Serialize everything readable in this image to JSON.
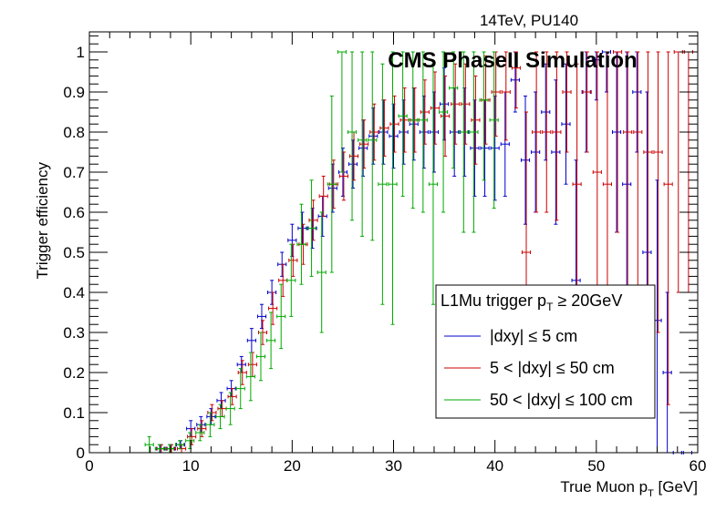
{
  "chart_data": {
    "type": "scatter",
    "title": "14TeV, PU140",
    "annotation": "CMS PhaseII Simulation",
    "xlabel": "True Muon p",
    "xlabel_sub": "T",
    "xlabel_unit": " [GeV]",
    "ylabel": "Trigger efficiency",
    "xlim": [
      0,
      60
    ],
    "ylim": [
      0,
      1.05
    ],
    "x_ticks": [
      0,
      10,
      20,
      30,
      40,
      50,
      60
    ],
    "y_ticks": [
      0,
      0.1,
      0.2,
      0.3,
      0.4,
      0.5,
      0.6,
      0.7,
      0.8,
      0.9,
      1
    ],
    "x_tick_labels": [
      "0",
      "10",
      "20",
      "30",
      "40",
      "50",
      "60"
    ],
    "y_tick_labels": [
      "0",
      "0.1",
      "0.2",
      "0.3",
      "0.4",
      "0.5",
      "0.6",
      "0.7",
      "0.8",
      "0.9",
      "1"
    ],
    "grid": false,
    "legend": {
      "placement": "bottom-right",
      "header_prefix": "L1Mu trigger p",
      "header_sub": "T",
      "header_suffix": " ≥ 20GeV"
    },
    "series": [
      {
        "name": "|dxy| ≤ 5 cm",
        "color": "#0000cc",
        "x": [
          7,
          8,
          9,
          10,
          11,
          12,
          13,
          14,
          15,
          16,
          17,
          18,
          19,
          20,
          21,
          22,
          23,
          24,
          25,
          26,
          27,
          28,
          29,
          30,
          31,
          32,
          33,
          34,
          35,
          36,
          37,
          38,
          39,
          40,
          41,
          42,
          43,
          44,
          45,
          46,
          47,
          48,
          49,
          50,
          51,
          52,
          53,
          54,
          55,
          56,
          57,
          58,
          59
        ],
        "y": [
          0.01,
          0.01,
          0.02,
          0.06,
          0.07,
          0.09,
          0.13,
          0.16,
          0.22,
          0.28,
          0.34,
          0.4,
          0.47,
          0.53,
          0.56,
          0.56,
          0.59,
          0.66,
          0.7,
          0.72,
          0.76,
          0.79,
          0.8,
          0.79,
          0.8,
          0.82,
          0.8,
          0.8,
          0.87,
          0.8,
          0.8,
          0.76,
          0.76,
          0.76,
          0.77,
          0.93,
          0.73,
          0.75,
          0.85,
          0.75,
          0.82,
          0.43,
          0.9,
          0.98,
          1.0,
          0.8,
          0.67,
          0.9,
          0.5,
          0.33,
          0.2,
          0.0,
          0.0
        ],
        "err": [
          0.01,
          0.01,
          0.01,
          0.02,
          0.02,
          0.02,
          0.02,
          0.02,
          0.02,
          0.03,
          0.03,
          0.03,
          0.03,
          0.04,
          0.04,
          0.05,
          0.05,
          0.06,
          0.06,
          0.06,
          0.07,
          0.07,
          0.08,
          0.08,
          0.08,
          0.09,
          0.09,
          0.1,
          0.09,
          0.11,
          0.11,
          0.12,
          0.12,
          0.13,
          0.13,
          0.08,
          0.16,
          0.15,
          0.12,
          0.18,
          0.15,
          0.3,
          0.15,
          0.1,
          0.1,
          0.25,
          0.35,
          0.15,
          0.4,
          0.35,
          0.2,
          0.0,
          0.0
        ]
      },
      {
        "name": "5 < |dxy| ≤ 50 cm",
        "color": "#cc0000",
        "x": [
          7,
          8,
          9,
          10,
          11,
          12,
          13,
          14,
          15,
          16,
          17,
          18,
          19,
          20,
          21,
          22,
          23,
          24,
          25,
          26,
          27,
          28,
          29,
          30,
          31,
          32,
          33,
          34,
          35,
          36,
          37,
          38,
          39,
          40,
          41,
          42,
          43,
          44,
          45,
          46,
          47,
          48,
          49,
          50,
          51,
          52,
          53,
          54,
          55,
          56,
          57,
          58,
          59
        ],
        "y": [
          0.01,
          0.01,
          0.01,
          0.04,
          0.06,
          0.1,
          0.11,
          0.14,
          0.2,
          0.22,
          0.3,
          0.36,
          0.43,
          0.48,
          0.52,
          0.58,
          0.64,
          0.67,
          0.69,
          0.74,
          0.77,
          0.8,
          0.81,
          0.82,
          0.83,
          0.83,
          0.85,
          0.86,
          0.84,
          0.87,
          0.87,
          0.83,
          0.88,
          0.9,
          0.9,
          0.96,
          0.5,
          0.8,
          0.8,
          0.8,
          0.9,
          0.67,
          0.9,
          0.7,
          0.67,
          1.0,
          0.8,
          0.8,
          0.75,
          0.75,
          0.67,
          1.0,
          1.0
        ],
        "err": [
          0.01,
          0.01,
          0.01,
          0.02,
          0.02,
          0.02,
          0.02,
          0.02,
          0.03,
          0.03,
          0.03,
          0.04,
          0.04,
          0.04,
          0.05,
          0.05,
          0.05,
          0.06,
          0.06,
          0.06,
          0.06,
          0.07,
          0.07,
          0.07,
          0.08,
          0.08,
          0.08,
          0.09,
          0.1,
          0.1,
          0.1,
          0.11,
          0.11,
          0.11,
          0.12,
          0.1,
          0.35,
          0.2,
          0.2,
          0.22,
          0.15,
          0.3,
          0.15,
          0.3,
          0.35,
          0.45,
          0.4,
          0.4,
          0.45,
          0.45,
          0.55,
          0.6,
          0.6
        ]
      },
      {
        "name": "50 < |dxy| ≤ 100 cm",
        "color": "#00aa00",
        "x": [
          6,
          7,
          8,
          9,
          10,
          11,
          12,
          13,
          14,
          15,
          16,
          17,
          18,
          19,
          20,
          21,
          22,
          23,
          24,
          25,
          26,
          27,
          28,
          29,
          30,
          31,
          32,
          33,
          34,
          35,
          36,
          37,
          38,
          39,
          40
        ],
        "y": [
          0.02,
          0.01,
          0.01,
          0.02,
          0.03,
          0.05,
          0.07,
          0.09,
          0.11,
          0.16,
          0.19,
          0.24,
          0.28,
          0.34,
          0.43,
          0.52,
          0.56,
          0.45,
          0.67,
          1.0,
          0.8,
          0.78,
          0.78,
          0.67,
          0.67,
          0.84,
          0.83,
          0.83,
          0.67,
          0.85,
          0.91,
          0.8,
          0.8,
          0.88,
          0.83
        ],
        "err": [
          0.02,
          0.01,
          0.01,
          0.01,
          0.02,
          0.02,
          0.03,
          0.03,
          0.04,
          0.05,
          0.06,
          0.06,
          0.07,
          0.08,
          0.09,
          0.1,
          0.12,
          0.15,
          0.22,
          0.3,
          0.22,
          0.24,
          0.25,
          0.3,
          0.35,
          0.2,
          0.22,
          0.23,
          0.3,
          0.25,
          0.2,
          0.25,
          0.25,
          0.2,
          0.22
        ]
      }
    ]
  }
}
